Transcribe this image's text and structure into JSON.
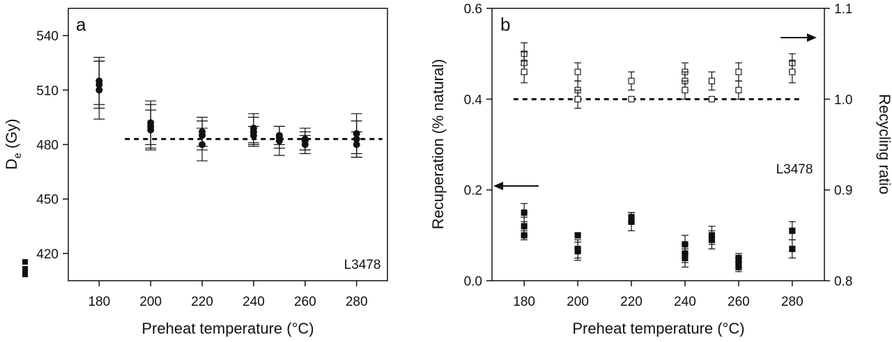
{
  "chart_data": [
    {
      "type": "scatter",
      "panel_label": "a",
      "xlabel": "Preheat temperature (°C)",
      "ylabel": "D",
      "ylabel_sub": "e",
      "ylabel_unit": " (Gy)",
      "xlim": [
        168,
        292
      ],
      "ylim": [
        405,
        555
      ],
      "xticks": [
        180,
        200,
        220,
        240,
        260,
        280
      ],
      "yticks": [
        420,
        450,
        480,
        510,
        540
      ],
      "annotation": "L3478",
      "reference_line": {
        "style": "dashed",
        "y": 483,
        "x_from": 190,
        "x_to": 290
      },
      "series": [
        {
          "marker": "filled-circle",
          "points": [
            {
              "x": 180,
              "y": 510,
              "err": 16
            },
            {
              "x": 180,
              "y": 513,
              "err": 13
            },
            {
              "x": 180,
              "y": 515,
              "err": 13
            },
            {
              "x": 200,
              "y": 488,
              "err": 11
            },
            {
              "x": 200,
              "y": 490,
              "err": 12
            },
            {
              "x": 200,
              "y": 492,
              "err": 12
            },
            {
              "x": 220,
              "y": 480,
              "err": 9
            },
            {
              "x": 220,
              "y": 485,
              "err": 8
            },
            {
              "x": 220,
              "y": 487,
              "err": 8
            },
            {
              "x": 240,
              "y": 485,
              "err": 5
            },
            {
              "x": 240,
              "y": 487,
              "err": 8
            },
            {
              "x": 240,
              "y": 489,
              "err": 8
            },
            {
              "x": 250,
              "y": 482,
              "err": 8
            },
            {
              "x": 250,
              "y": 484,
              "err": 6
            },
            {
              "x": 250,
              "y": 485,
              "err": 5
            },
            {
              "x": 260,
              "y": 480,
              "err": 5
            },
            {
              "x": 260,
              "y": 482,
              "err": 5
            },
            {
              "x": 260,
              "y": 483,
              "err": 6
            },
            {
              "x": 280,
              "y": 480,
              "err": 7
            },
            {
              "x": 280,
              "y": 483,
              "err": 10
            },
            {
              "x": 280,
              "y": 486,
              "err": 11
            }
          ]
        }
      ],
      "legend": {
        "placement": "bottom-left",
        "marker": "filled-square"
      }
    },
    {
      "type": "scatter",
      "panel_label": "b",
      "xlabel": "Preheat temperature (°C)",
      "ylabel": "Recuperation (% natural)",
      "y2label": "Recycling ratio",
      "xlim": [
        168,
        292
      ],
      "ylim": [
        0.0,
        0.6
      ],
      "y2lim": [
        0.8,
        1.1
      ],
      "xticks": [
        180,
        200,
        220,
        240,
        260,
        280
      ],
      "yticks": [
        "0.0",
        "0.2",
        "0.4",
        "0.6"
      ],
      "y2ticks": [
        "0.8",
        "0.9",
        "1.0",
        "1.1"
      ],
      "annotation": "L3478",
      "reference_line": {
        "style": "dashed",
        "axis": "right",
        "y": 1.0,
        "x_from": 176,
        "x_to": 284
      },
      "axis_arrows": [
        {
          "direction": "left",
          "points_to": "left axis"
        },
        {
          "direction": "right",
          "points_to": "right axis"
        }
      ],
      "series": [
        {
          "axis": "left",
          "marker": "filled-square",
          "points": [
            {
              "x": 180,
              "y": 0.15,
              "err": 0.02
            },
            {
              "x": 180,
              "y": 0.12,
              "err": 0.02
            },
            {
              "x": 180,
              "y": 0.1,
              "err": 0.01
            },
            {
              "x": 200,
              "y": 0.1,
              "err": 0.0
            },
            {
              "x": 200,
              "y": 0.07,
              "err": 0.02
            },
            {
              "x": 200,
              "y": 0.065,
              "err": 0.02
            },
            {
              "x": 220,
              "y": 0.14,
              "err": 0.01
            },
            {
              "x": 220,
              "y": 0.13,
              "err": 0.02
            },
            {
              "x": 240,
              "y": 0.08,
              "err": 0.02
            },
            {
              "x": 240,
              "y": 0.06,
              "err": 0.02
            },
            {
              "x": 240,
              "y": 0.05,
              "err": 0.02
            },
            {
              "x": 250,
              "y": 0.1,
              "err": 0.02
            },
            {
              "x": 250,
              "y": 0.09,
              "err": 0.02
            },
            {
              "x": 260,
              "y": 0.05,
              "err": 0.01
            },
            {
              "x": 260,
              "y": 0.04,
              "err": 0.01
            },
            {
              "x": 260,
              "y": 0.03,
              "err": 0.01
            },
            {
              "x": 280,
              "y": 0.11,
              "err": 0.02
            },
            {
              "x": 280,
              "y": 0.07,
              "err": 0.02
            }
          ]
        },
        {
          "axis": "right",
          "marker": "open-square",
          "points": [
            {
              "x": 180,
              "y": 1.05,
              "err": 0.012
            },
            {
              "x": 180,
              "y": 1.04,
              "err": 0.012
            },
            {
              "x": 180,
              "y": 1.03,
              "err": 0.012
            },
            {
              "x": 200,
              "y": 1.03,
              "err": 0.01
            },
            {
              "x": 200,
              "y": 1.01,
              "err": 0.01
            },
            {
              "x": 200,
              "y": 1.0,
              "err": 0.01
            },
            {
              "x": 220,
              "y": 1.02,
              "err": 0.01
            },
            {
              "x": 220,
              "y": 1.0,
              "err": 0.0
            },
            {
              "x": 240,
              "y": 1.03,
              "err": 0.01
            },
            {
              "x": 240,
              "y": 1.02,
              "err": 0.01
            },
            {
              "x": 240,
              "y": 1.01,
              "err": 0.01
            },
            {
              "x": 250,
              "y": 1.02,
              "err": 0.01
            },
            {
              "x": 250,
              "y": 1.0,
              "err": 0.0
            },
            {
              "x": 260,
              "y": 1.03,
              "err": 0.01
            },
            {
              "x": 260,
              "y": 1.01,
              "err": 0.01
            },
            {
              "x": 280,
              "y": 1.04,
              "err": 0.01
            },
            {
              "x": 280,
              "y": 1.03,
              "err": 0.012
            }
          ]
        }
      ]
    }
  ]
}
